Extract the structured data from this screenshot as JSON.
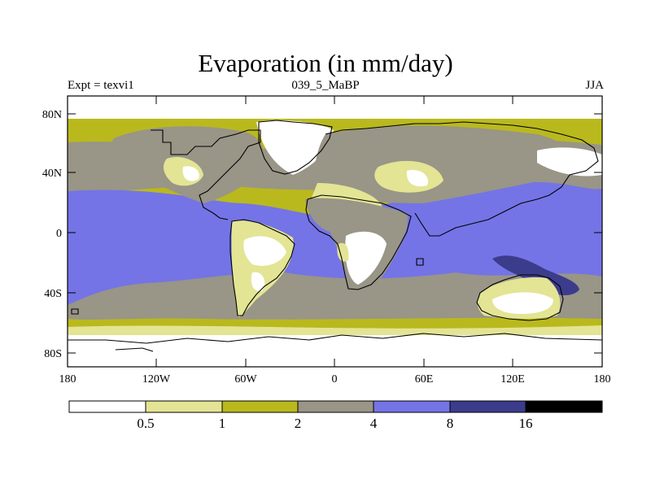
{
  "title": "Evaporation (in mm/day)",
  "left_string": "Expt = texvi1",
  "center_string": "039_5_MaBP",
  "right_string": "JJA",
  "y_ticks": [
    "80N",
    "40N",
    "0",
    "40S",
    "80S"
  ],
  "x_ticks": [
    "180",
    "120W",
    "60W",
    "0",
    "60E",
    "120E",
    "180"
  ],
  "colorbar": {
    "labels": [
      "0.5",
      "1",
      "2",
      "4",
      "8",
      "16"
    ],
    "colors": [
      "#ffffff",
      "#e3e494",
      "#b9b91e",
      "#999587",
      "#7474e6",
      "#3c3c8c",
      "#000000"
    ]
  },
  "chart_data": {
    "type": "heatmap",
    "title": "Evaporation (in mm/day)",
    "left_string": "Expt = texvi1",
    "center_string": "039_5_MaBP",
    "right_string": "JJA",
    "xlim": [
      -180,
      180
    ],
    "ylim": [
      -90,
      90
    ],
    "contour_levels": [
      0.5,
      1,
      2,
      4,
      8,
      16
    ]
  }
}
